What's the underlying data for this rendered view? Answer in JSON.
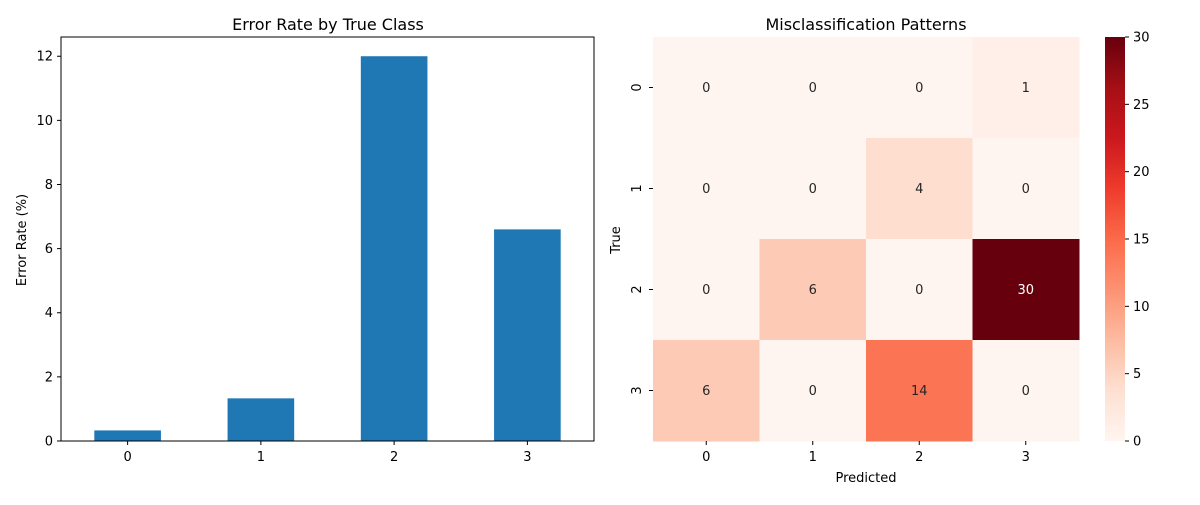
{
  "chart_data": [
    {
      "type": "bar",
      "title": "Error Rate by True Class",
      "xlabel": "",
      "ylabel": "Error Rate (%)",
      "categories": [
        "0",
        "1",
        "2",
        "3"
      ],
      "values": [
        0.33,
        1.33,
        12.0,
        6.6
      ],
      "ylim": [
        0,
        12.6
      ],
      "yticks": [
        0,
        2,
        4,
        6,
        8,
        10,
        12
      ],
      "color": "#1f77b4",
      "grid": false
    },
    {
      "type": "heatmap",
      "title": "Misclassification Patterns",
      "xlabel": "Predicted",
      "ylabel": "True",
      "x_categories": [
        "0",
        "1",
        "2",
        "3"
      ],
      "y_categories": [
        "0",
        "1",
        "2",
        "3"
      ],
      "values": [
        [
          0,
          0,
          0,
          1
        ],
        [
          0,
          0,
          4,
          0
        ],
        [
          0,
          6,
          0,
          30
        ],
        [
          6,
          0,
          14,
          0
        ]
      ],
      "colormap": "Reds",
      "vmin": 0,
      "vmax": 30,
      "colorbar_ticks": [
        0,
        5,
        10,
        15,
        20,
        25,
        30
      ],
      "annotated": true
    }
  ]
}
